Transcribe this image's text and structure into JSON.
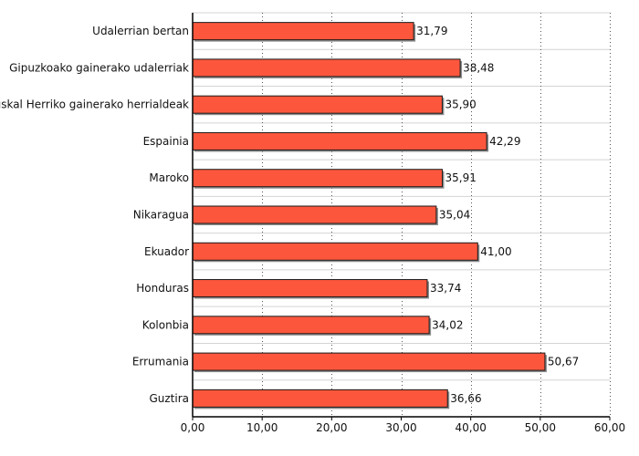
{
  "chart_data": {
    "type": "bar",
    "orientation": "horizontal",
    "categories": [
      "Udalerrian bertan",
      "Gipuzkoako gainerako udalerriak",
      "Euskal Herriko gainerako herrialdeak",
      "Espainia",
      "Maroko",
      "Nikaragua",
      "Ekuador",
      "Honduras",
      "Kolonbia",
      "Errumania",
      "Guztira"
    ],
    "values": [
      31.79,
      38.48,
      35.9,
      42.29,
      35.91,
      35.04,
      41.0,
      33.74,
      34.02,
      50.67,
      36.66
    ],
    "value_labels": [
      "31,79",
      "38,48",
      "35,90",
      "42,29",
      "35,91",
      "35,04",
      "41,00",
      "33,74",
      "34,02",
      "50,67",
      "36,66"
    ],
    "x_ticks": [
      0,
      10,
      20,
      30,
      40,
      50,
      60
    ],
    "x_tick_labels": [
      "0,00",
      "10,00",
      "20,00",
      "30,00",
      "40,00",
      "50,00",
      "60,00"
    ],
    "xlim": [
      0,
      60
    ],
    "title": "",
    "xlabel": "",
    "ylabel": "",
    "grid": true,
    "bar_color": "#fc573d",
    "bar_outline_color": "#1a1a1a",
    "shadow_color": "#8c8c8c",
    "grid_color": "#555555"
  }
}
